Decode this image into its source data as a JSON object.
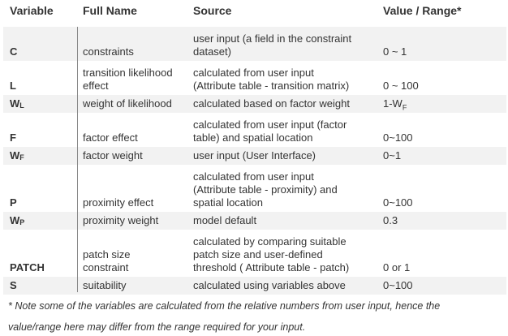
{
  "header": {
    "variable": "Variable",
    "full_name": "Full Name",
    "source": "Source",
    "value_range": "Value / Range*"
  },
  "rows": [
    {
      "var": "C",
      "sub": "",
      "name": [
        "constraints"
      ],
      "source": [
        "user input (a field in the constraint",
        "dataset)"
      ],
      "value": "0 ~ 1"
    },
    {
      "var": "L",
      "sub": "",
      "name": [
        "transition likelihood",
        "effect"
      ],
      "source": [
        "calculated from user input",
        "(Attribute table - transition matrix)"
      ],
      "value": "0 ~ 100"
    },
    {
      "var": "W",
      "sub": "L",
      "name": [
        "weight of likelihood"
      ],
      "source": [
        "calculated based on factor weight"
      ],
      "value": "1-W",
      "value_sub": "F"
    },
    {
      "var": "F",
      "sub": "",
      "name": [
        "factor effect"
      ],
      "source": [
        "calculated from user input (factor",
        "table) and spatial location"
      ],
      "value": "0~100"
    },
    {
      "var": "W",
      "sub": "F",
      "name": [
        "factor weight"
      ],
      "source": [
        "user input (User Interface)"
      ],
      "value": "0~1"
    },
    {
      "var": "P",
      "sub": "",
      "name": [
        "proximity effect"
      ],
      "source": [
        "calculated from user input",
        "(Attribute table - proximity) and",
        "spatial location"
      ],
      "value": "0~100"
    },
    {
      "var": "W",
      "sub": "P",
      "name": [
        "proximity weight"
      ],
      "source": [
        "model default"
      ],
      "value": "0.3"
    },
    {
      "var": "PATCH",
      "sub": "",
      "name": [
        "patch size",
        "constraint"
      ],
      "source": [
        "calculated by comparing suitable",
        "patch size and user-defined",
        "threshold ( Attribute table - patch)"
      ],
      "value": "0 or 1"
    },
    {
      "var": "S",
      "sub": "",
      "name": [
        "suitability"
      ],
      "source": [
        "calculated using variables above"
      ],
      "value": "0~100"
    }
  ],
  "note": {
    "line1": "* Note some of the variables are calculated from the relative numbers from user input, hence the",
    "line2": "value/range here may differ from the range required for your input."
  }
}
